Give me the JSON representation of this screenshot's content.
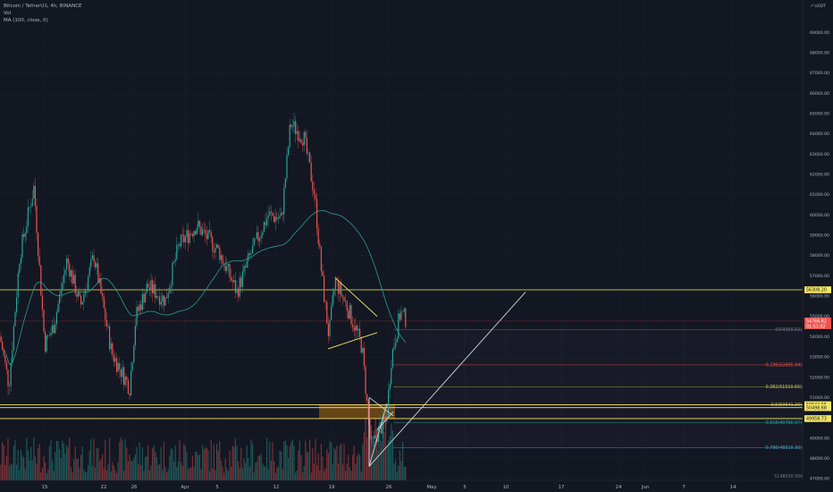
{
  "legend": {
    "title": "Bitcoin / TetherUS, 4h, BINANCE",
    "vol": "Vol",
    "ma": "MA (100, close, 0)"
  },
  "colors": {
    "background": "#131722",
    "up": "#26a69a",
    "down": "#ef5350",
    "ma": "#2a9d93",
    "hline": "#f5e663",
    "trend": "#d1d4dc",
    "grid": "#1c2030"
  },
  "chart_data": {
    "type": "candlestick",
    "symbol": "Bitcoin / TetherUS",
    "interval": "4h",
    "exchange": "BINANCE",
    "price_axis": {
      "unit": "USDT",
      "min": 47000,
      "max": 70000,
      "ticks": [
        "47000.00",
        "48000.00",
        "49000.00",
        "50000.00",
        "51000.00",
        "52000.00",
        "53000.00",
        "54000.00",
        "55000.00",
        "56000.00",
        "57000.00",
        "58000.00",
        "59000.00",
        "60000.00",
        "61000.00",
        "62000.00",
        "63000.00",
        "64000.00",
        "65000.00",
        "66000.00",
        "67000.00",
        "68000.00",
        "69000.00"
      ]
    },
    "time_axis": {
      "ticks": [
        "15",
        "22",
        "26",
        "Apr",
        "5",
        "12",
        "19",
        "26",
        "May",
        "5",
        "10",
        "17",
        "24",
        "Jun",
        "7",
        "14"
      ]
    },
    "horizontal_levels": [
      {
        "value": 56308.2,
        "label": "56308.20"
      },
      {
        "value": 50642.55,
        "label": "50642.55"
      },
      {
        "value": 50498.68,
        "label": "50498.68"
      },
      {
        "value": 49958.73,
        "label": "49958.73"
      }
    ],
    "fibonacci": [
      {
        "ratio": 0,
        "price": 54356.62,
        "label": "0(54356.62)",
        "color": "#787b86"
      },
      {
        "ratio": 0.236,
        "price": 52605.94,
        "label": "0.236(52605.94)",
        "color": "#ef5350"
      },
      {
        "ratio": 0.382,
        "price": 51519.65,
        "label": "0.382(51519.65)",
        "color": "#c6c65a"
      },
      {
        "ratio": 0.5,
        "price": 50641.2,
        "label": "0.5(50641.20)",
        "color": "#c6c65a"
      },
      {
        "ratio": 0.618,
        "price": 49766.97,
        "label": "0.618(49766.97)",
        "color": "#26a69a"
      },
      {
        "ratio": 0.786,
        "price": 48519.3,
        "label": "0.786(48519.30)",
        "color": "#4aa3c9"
      }
    ],
    "current_price": {
      "value": 54766.82,
      "label": "54766.82",
      "timer": "01:51:02"
    },
    "volume_ma_label": "5148930.00k",
    "header_unit": "USDT"
  }
}
